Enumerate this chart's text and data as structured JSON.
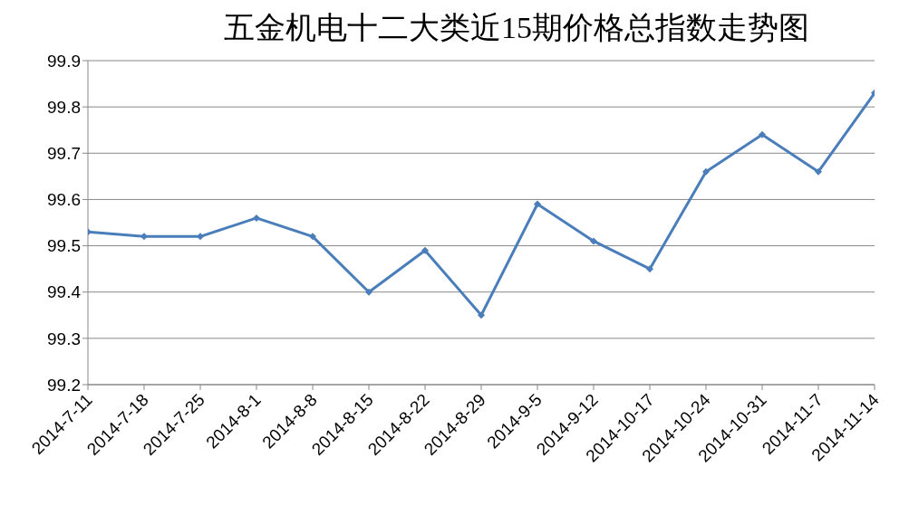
{
  "chart_data": {
    "type": "line",
    "title": "五金机电十二大类近15期价格总指数走势图",
    "categories": [
      "2014-7-11",
      "2014-7-18",
      "2014-7-25",
      "2014-8-1",
      "2014-8-8",
      "2014-8-15",
      "2014-8-22",
      "2014-8-29",
      "2014-9-5",
      "2014-9-12",
      "2014-10-17",
      "2014-10-24",
      "2014-10-31",
      "2014-11-7",
      "2014-11-14"
    ],
    "series": [
      {
        "color": "#4a7ebb",
        "values": [
          99.53,
          99.52,
          99.52,
          99.56,
          99.52,
          99.4,
          99.49,
          99.35,
          99.59,
          99.51,
          99.45,
          99.66,
          99.74,
          99.66,
          99.83
        ]
      }
    ],
    "ylim": [
      99.2,
      99.9
    ],
    "yticks": [
      99.2,
      99.3,
      99.4,
      99.5,
      99.6,
      99.7,
      99.8,
      99.9
    ],
    "grid": "y",
    "legend": false,
    "marker": "diamond",
    "line_style": "solid"
  }
}
